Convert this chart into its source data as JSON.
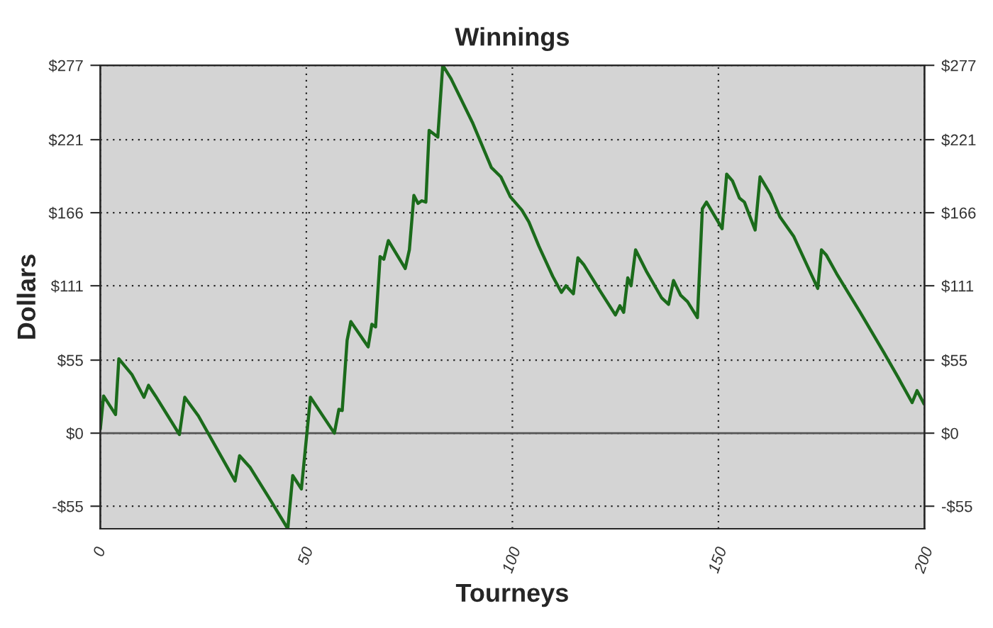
{
  "chart_data": {
    "type": "line",
    "title": "Winnings",
    "xlabel": "Tourneys",
    "ylabel": "Dollars",
    "x": [
      0,
      0.8,
      3.7,
      4.5,
      7.7,
      10.6,
      11.7,
      13.4,
      19.2,
      20.5,
      23.8,
      32.7,
      33.8,
      36.4,
      41,
      45.5,
      46.7,
      48.8,
      51,
      56.8,
      57.9,
      58.7,
      59.9,
      60.8,
      65,
      65.9,
      66.8,
      67.9,
      68.8,
      69.9,
      74,
      75,
      76.1,
      77.1,
      78,
      79,
      79.8,
      81.9,
      83.1,
      85.1,
      90.3,
      94.9,
      97.2,
      99.5,
      102.3,
      104,
      106.4,
      109.8,
      111.9,
      113,
      114.8,
      115.9,
      117.3,
      121.3,
      125,
      126.1,
      127,
      128,
      128.8,
      129.9,
      132.5,
      136.2,
      137.9,
      139.1,
      140.8,
      142.5,
      144.9,
      146.1,
      147.1,
      150.9,
      152,
      153.4,
      155.1,
      156.3,
      158.9,
      160.1,
      162.6,
      164.9,
      168.3,
      174.1,
      175,
      176.2,
      178.7,
      184.4,
      190.1,
      193.6,
      197,
      198.2,
      199.9
    ],
    "series": [
      {
        "color": "#1b6b1b",
        "values": [
          3,
          28,
          14,
          56,
          44,
          27,
          36,
          28,
          -1,
          27,
          13,
          -36,
          -17,
          -26,
          -49,
          -72,
          -32,
          -42,
          27,
          0,
          18,
          17,
          70,
          84,
          65,
          82,
          80,
          133,
          131,
          145,
          124,
          138,
          179,
          173,
          175,
          174,
          228,
          223,
          277,
          267,
          234,
          200,
          193,
          178,
          168,
          159,
          141,
          118,
          106,
          111,
          105,
          132,
          127,
          107,
          89,
          96,
          91,
          117,
          111,
          138,
          122,
          102,
          97,
          115,
          104,
          99,
          87,
          169,
          174,
          154,
          195,
          190,
          177,
          174,
          153,
          193,
          180,
          163,
          148,
          109,
          138,
          134,
          120,
          91,
          61,
          42,
          23,
          32,
          22
        ]
      }
    ],
    "xlim": [
      0,
      200
    ],
    "xticks": [
      0,
      50,
      100,
      150,
      200
    ],
    "ylim": [
      -72,
      277
    ],
    "yticks": [
      {
        "value": -55,
        "label": "-$55"
      },
      {
        "value": 0,
        "label": "$0"
      },
      {
        "value": 55,
        "label": "$55"
      },
      {
        "value": 111,
        "label": "$111"
      },
      {
        "value": 166,
        "label": "$166"
      },
      {
        "value": 221,
        "label": "$221"
      },
      {
        "value": 277,
        "label": "$277"
      }
    ],
    "y2lim": [
      -72,
      277
    ],
    "y2ticks": [
      {
        "value": -55,
        "label": "-$55"
      },
      {
        "value": 0,
        "label": "$0"
      },
      {
        "value": 55,
        "label": "$55"
      },
      {
        "value": 111,
        "label": "$111"
      },
      {
        "value": 166,
        "label": "$166"
      },
      {
        "value": 221,
        "label": "$221"
      },
      {
        "value": 277,
        "label": "$277"
      }
    ],
    "ref_lines": [
      {
        "axis": "y",
        "value": 0,
        "color": "#555555",
        "line_style": "solid"
      }
    ],
    "grid": true,
    "legend": false,
    "marker": "none",
    "line_style": "solid"
  }
}
